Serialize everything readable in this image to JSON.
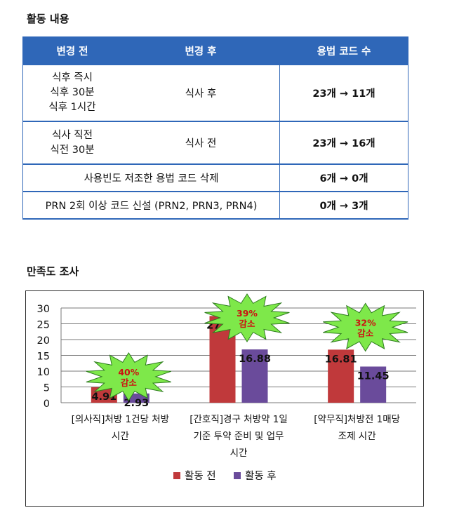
{
  "section1": {
    "title": "활동 내용"
  },
  "table": {
    "headers": [
      "변경 전",
      "변경 후",
      "용법 코드 수"
    ],
    "rows": [
      {
        "before": "식후 즉시\n식후 30분\n식후 1시간",
        "after": "식사 후",
        "count": "23개 → 11개"
      },
      {
        "before": "식사 직전\n식전 30분",
        "after": "식사 전",
        "count": "23개 → 16개"
      },
      {
        "merged": "사용빈도 저조한 용법 코드 삭제",
        "count": "6개 → 0개"
      },
      {
        "merged": "PRN 2회 이상 코드 신설 (PRN2, PRN3, PRN4)",
        "count": "0개 → 3개"
      }
    ]
  },
  "section2": {
    "title": "만족도 조사"
  },
  "chart_data": {
    "type": "bar",
    "categories": [
      [
        "[의사직]처방 1건당 처방",
        "시간"
      ],
      [
        "[간호직]경구 처방약 1일",
        "기준 투약 준비 및 업무",
        "시간"
      ],
      [
        "[약무직]처방전 1매당",
        "조제 시간"
      ]
    ],
    "series": [
      {
        "name": "활동 전",
        "values": [
          4.91,
          27.47,
          16.81
        ],
        "labels": [
          "4.91",
          "27.47",
          "16.81"
        ],
        "color": "#c0393b"
      },
      {
        "name": "활동 후",
        "values": [
          2.93,
          16.88,
          11.45
        ],
        "labels": [
          "2.93",
          "16.88",
          "11.45"
        ],
        "color": "#6a4b9b"
      }
    ],
    "ylim": [
      0,
      30
    ],
    "yticks": [
      "0",
      "5",
      "10",
      "15",
      "20",
      "25",
      "30"
    ],
    "grid": true,
    "legend": "bottom",
    "annotations": [
      {
        "category": 0,
        "lines": [
          "40%",
          "감소"
        ]
      },
      {
        "category": 1,
        "lines": [
          "39%",
          "감소"
        ]
      },
      {
        "category": 2,
        "lines": [
          "32%",
          "감소"
        ]
      }
    ],
    "annotation_fill": "#7ee84a",
    "annotation_text_color": "#cc1111"
  }
}
